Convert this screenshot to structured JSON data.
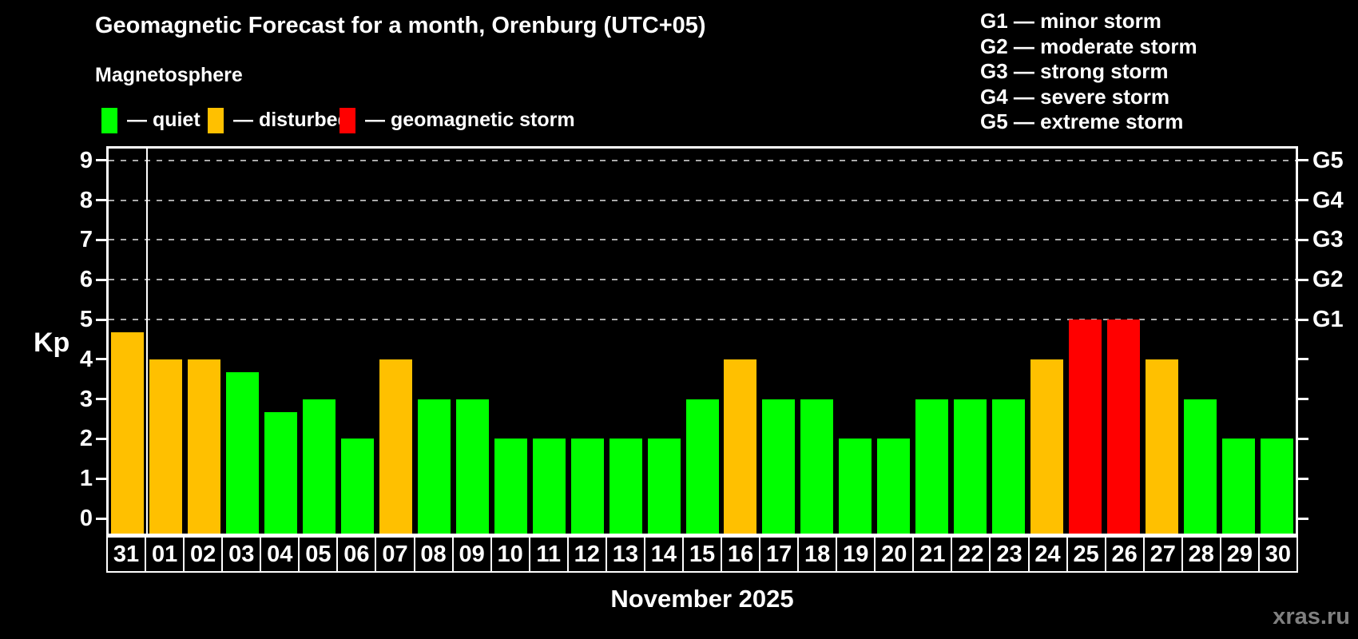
{
  "header": {
    "title": "Geomagnetic Forecast for a month, Orenburg (UTC+05)",
    "subtitle": "Magnetosphere"
  },
  "legend": {
    "items": [
      {
        "key": "quiet",
        "label": "— quiet",
        "color": "#00ff00"
      },
      {
        "key": "disturbed",
        "label": "— disturbed",
        "color": "#ffc000"
      },
      {
        "key": "storm",
        "label": "— geomagnetic storm",
        "color": "#ff0000"
      }
    ]
  },
  "g_legend": {
    "items": [
      {
        "code": "G1",
        "label": "G1 — minor storm",
        "kp": 5
      },
      {
        "code": "G2",
        "label": "G2 — moderate storm",
        "kp": 6
      },
      {
        "code": "G3",
        "label": "G3 — strong storm",
        "kp": 7
      },
      {
        "code": "G4",
        "label": "G4 — severe storm",
        "kp": 8
      },
      {
        "code": "G5",
        "label": "G5 — extreme storm",
        "kp": 9
      }
    ]
  },
  "axes": {
    "ylabel": "Kp",
    "y_ticks": [
      0,
      1,
      2,
      3,
      4,
      5,
      6,
      7,
      8,
      9
    ],
    "grid_levels": [
      5,
      6,
      7,
      8,
      9
    ]
  },
  "chart_data": {
    "type": "bar",
    "title": "Geomagnetic Forecast for a month, Orenburg (UTC+05)",
    "xlabel": "November 2025",
    "ylabel": "Kp",
    "ylim": [
      0,
      9
    ],
    "grid": "dashed horizontal lines at Kp 5-9 (G1-G5 storm levels)",
    "legend_position": "top-left",
    "categories": [
      "31",
      "01",
      "02",
      "03",
      "04",
      "05",
      "06",
      "07",
      "08",
      "09",
      "10",
      "11",
      "12",
      "13",
      "14",
      "15",
      "16",
      "17",
      "18",
      "19",
      "20",
      "21",
      "22",
      "23",
      "24",
      "25",
      "26",
      "27",
      "28",
      "29",
      "30"
    ],
    "values": [
      4.67,
      4,
      4,
      3.67,
      2.67,
      3,
      2,
      4,
      3,
      3,
      2,
      2,
      2,
      2,
      2,
      3,
      4,
      3,
      3,
      2,
      2,
      3,
      3,
      3,
      4,
      5,
      5,
      4,
      3,
      2,
      2
    ],
    "statuses": [
      "disturbed",
      "disturbed",
      "disturbed",
      "quiet",
      "quiet",
      "quiet",
      "quiet",
      "disturbed",
      "quiet",
      "quiet",
      "quiet",
      "quiet",
      "quiet",
      "quiet",
      "quiet",
      "quiet",
      "disturbed",
      "quiet",
      "quiet",
      "quiet",
      "quiet",
      "quiet",
      "quiet",
      "quiet",
      "disturbed",
      "storm",
      "storm",
      "disturbed",
      "quiet",
      "quiet",
      "quiet"
    ]
  },
  "footer": {
    "xlabel": "November 2025",
    "watermark": "xras.ru"
  },
  "colors": {
    "background": "#000000",
    "axis": "#ffffff",
    "grid": "#aaaaaa",
    "quiet": "#00ff00",
    "disturbed": "#ffc000",
    "storm": "#ff0000",
    "watermark": "#808080"
  }
}
